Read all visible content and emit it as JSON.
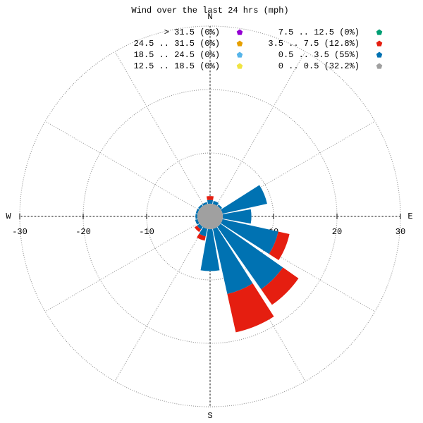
{
  "chart_data": {
    "type": "windrose",
    "title": "Wind over the last 24 hrs (mph)",
    "compass_labels": [
      "N",
      "E",
      "S",
      "W"
    ],
    "x": [
      0,
      22.5,
      45,
      67.5,
      90,
      112.5,
      135,
      157.5,
      180,
      202.5,
      225,
      247.5,
      270,
      292.5,
      315,
      337.5
    ],
    "xlim": [
      -30,
      30
    ],
    "xticks": [
      -30,
      -20,
      -10,
      10,
      20,
      30
    ],
    "rticks": [
      10,
      20,
      30
    ],
    "series": [
      {
        "name": "> 31.5 (0%)",
        "color": "#9400d3",
        "values": [
          0,
          0,
          0,
          0,
          0,
          0,
          0,
          0,
          0,
          0,
          0,
          0,
          0,
          0,
          0,
          0
        ]
      },
      {
        "name": "24.5 .. 31.5 (0%)",
        "color": "#e69f00",
        "values": [
          0,
          0,
          0,
          0,
          0,
          0,
          0,
          0,
          0,
          0,
          0,
          0,
          0,
          0,
          0,
          0
        ]
      },
      {
        "name": "18.5 .. 24.5 (0%)",
        "color": "#56b4e9",
        "values": [
          0,
          0,
          0,
          0,
          0,
          0,
          0,
          0,
          0,
          0,
          0,
          0,
          0,
          0,
          0,
          0
        ]
      },
      {
        "name": "12.5 .. 18.5 (0%)",
        "color": "#f0e442",
        "values": [
          0,
          0,
          0,
          0,
          0,
          0,
          0,
          0,
          0,
          0,
          0,
          0,
          0,
          0,
          0,
          0
        ]
      },
      {
        "name": "7.5 .. 12.5 (0%)",
        "color": "#009e73",
        "values": [
          0,
          0,
          0,
          0,
          0,
          0,
          0,
          0,
          0,
          0,
          0,
          0,
          0,
          0,
          0,
          0
        ]
      },
      {
        "name": "3.5 .. 7.5 (12.8%)",
        "color": "#e51e10",
        "values": [
          0.6,
          0,
          0,
          0,
          0,
          1.8,
          3,
          6.2,
          0,
          0.7,
          0.5,
          0,
          0,
          0,
          0,
          0
        ]
      },
      {
        "name": "0.5 .. 3.5 (55%)",
        "color": "#0072b2",
        "values": [
          0.6,
          0.5,
          0.3,
          7.2,
          4.5,
          9,
          12,
          10.5,
          6.6,
          1.2,
          0.5,
          0.4,
          0.3,
          0.3,
          0.3,
          0.3
        ]
      }
    ],
    "calm": {
      "name": "0 .. 0.5 (32.2%)",
      "color": "#a0a0a0",
      "value": 32.2
    }
  }
}
